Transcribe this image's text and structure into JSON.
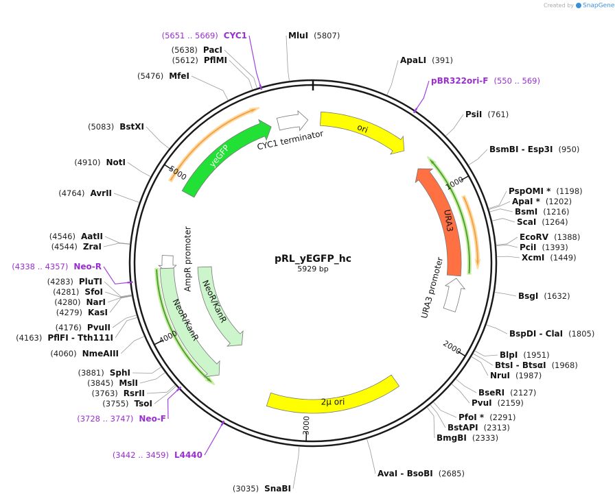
{
  "title": "pRL_yEGFP_hc",
  "subtitle": "5929 bp",
  "credit": {
    "prefix": "Created by",
    "brand": "SnapGene"
  },
  "ticks": [
    "1000",
    "2000",
    "3000",
    "4000",
    "5000"
  ],
  "features": [
    {
      "label": "yeGFP"
    },
    {
      "label": "CYC1 terminator"
    },
    {
      "label": "ori"
    },
    {
      "label": "URA3"
    },
    {
      "label": "URA3 promoter"
    },
    {
      "label": "2μ ori"
    },
    {
      "label": "AmpR promoter"
    },
    {
      "label": "NeoR/KanR"
    },
    {
      "label": "NeoR/KanR"
    }
  ],
  "sites": [
    {
      "name": "MluI",
      "position": "(5807)"
    },
    {
      "name": "ApaLI",
      "position": "(391)"
    },
    {
      "name": "PsiI",
      "position": "(761)"
    },
    {
      "name": "BsmBI - Esp3I",
      "position": "(950)"
    },
    {
      "name": "PspOMI *",
      "position": "(1198)"
    },
    {
      "name": "ApaI *",
      "position": "(1202)"
    },
    {
      "name": "BsmI",
      "position": "(1216)"
    },
    {
      "name": "ScaI",
      "position": "(1264)"
    },
    {
      "name": "EcoRV",
      "position": "(1388)"
    },
    {
      "name": "PciI",
      "position": "(1393)"
    },
    {
      "name": "XcmI",
      "position": "(1449)"
    },
    {
      "name": "BsgI",
      "position": "(1632)"
    },
    {
      "name": "BspDI - ClaI",
      "position": "(1805)"
    },
    {
      "name": "BlpI",
      "position": "(1951)"
    },
    {
      "name": "BtsI - BtsαI",
      "position": "(1968)"
    },
    {
      "name": "NruI",
      "position": "(1987)"
    },
    {
      "name": "BseRI",
      "position": "(2127)"
    },
    {
      "name": "PvuI",
      "position": "(2159)"
    },
    {
      "name": "PfoI *",
      "position": "(2291)"
    },
    {
      "name": "BstAPI",
      "position": "(2313)"
    },
    {
      "name": "BmgBI",
      "position": "(2333)"
    },
    {
      "name": "AvaI - BsoBI",
      "position": "(2685)"
    },
    {
      "name": "SnaBI",
      "position": "(3035)"
    },
    {
      "name": "PacI",
      "position": "(5638)"
    },
    {
      "name": "PflMI",
      "position": "(5612)"
    },
    {
      "name": "MfeI",
      "position": "(5476)"
    },
    {
      "name": "BstXI",
      "position": "(5083)"
    },
    {
      "name": "NotI",
      "position": "(4910)"
    },
    {
      "name": "AvrII",
      "position": "(4764)"
    },
    {
      "name": "AatII",
      "position": "(4546)"
    },
    {
      "name": "ZraI",
      "position": "(4544)"
    },
    {
      "name": "PluTI",
      "position": "(4283)"
    },
    {
      "name": "SfoI",
      "position": "(4281)"
    },
    {
      "name": "NarI",
      "position": "(4280)"
    },
    {
      "name": "KasI",
      "position": "(4279)"
    },
    {
      "name": "PvuII",
      "position": "(4176)"
    },
    {
      "name": "PflFI - Tth111I",
      "position": "(4163)"
    },
    {
      "name": "NmeAIII",
      "position": "(4060)"
    },
    {
      "name": "SphI",
      "position": "(3881)"
    },
    {
      "name": "MslI",
      "position": "(3845)"
    },
    {
      "name": "RsrII",
      "position": "(3763)"
    },
    {
      "name": "TsoI",
      "position": "(3755)"
    }
  ],
  "primers": [
    {
      "name": "CYC1",
      "position": "(5651 .. 5669)"
    },
    {
      "name": "pBR322ori-F",
      "position": "(550 .. 569)"
    },
    {
      "name": "Neo-R",
      "position": "(4338 .. 4357)"
    },
    {
      "name": "Neo-F",
      "position": "(3728 .. 3747)"
    },
    {
      "name": "L4440",
      "position": "(3442 .. 3459)"
    }
  ]
}
